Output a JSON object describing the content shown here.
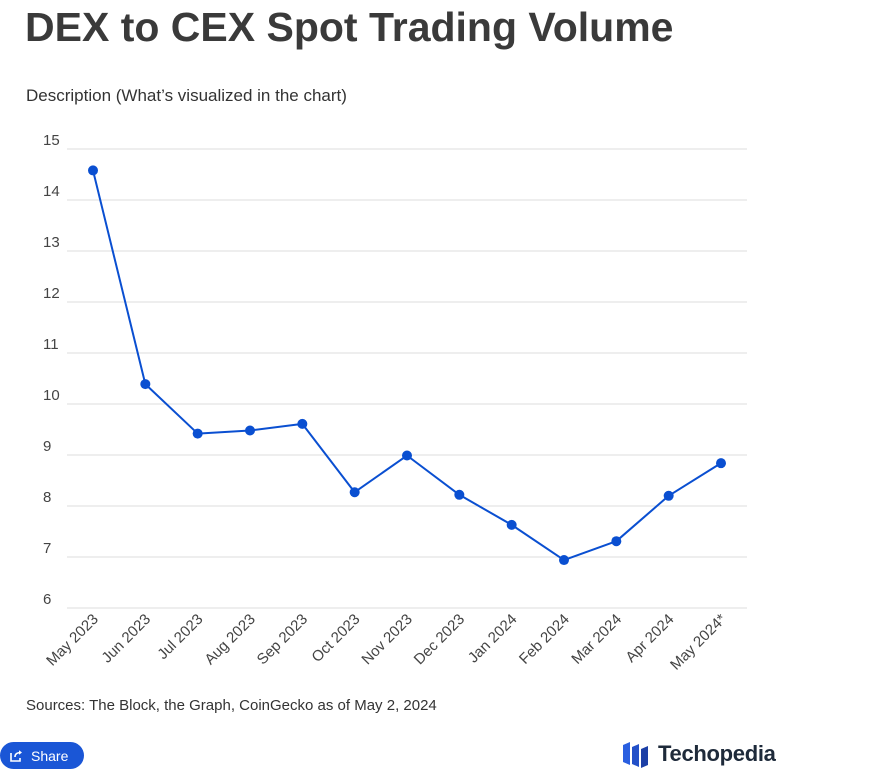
{
  "header": {
    "title": "DEX to CEX Spot Trading Volume",
    "subtitle": "Description (What’s visualized in the chart)"
  },
  "footer": {
    "source": "Sources: The Block, the Graph, CoinGecko as of May 2, 2024",
    "share_label": "Share",
    "brand_name": "Techopedia"
  },
  "colors": {
    "line": "#0a4fd1",
    "grid": "#dddddd",
    "share_bg": "#1a56d6",
    "brand_blue": "#2a5fe0"
  },
  "icons": {
    "share": "share-icon",
    "logo": "techopedia-logo-icon"
  },
  "chart_data": {
    "type": "line",
    "title": "DEX to CEX Spot Trading Volume",
    "xlabel": "",
    "ylabel": "",
    "categories": [
      "May 2023",
      "Jun 2023",
      "Jul 2023",
      "Aug 2023",
      "Sep 2023",
      "Oct 2023",
      "Nov 2023",
      "Dec 2023",
      "Jan 2024",
      "Feb 2024",
      "Mar 2024",
      "Apr 2024",
      "May 2024*"
    ],
    "series": [
      {
        "values": [
          14.58,
          10.39,
          9.42,
          9.48,
          9.61,
          8.27,
          8.99,
          8.22,
          7.63,
          6.94,
          7.31,
          8.2,
          8.84
        ]
      }
    ],
    "ylim": [
      6,
      15
    ],
    "yticks": [
      "6",
      "7",
      "8",
      "9",
      "10",
      "11",
      "12",
      "13",
      "14",
      "15"
    ],
    "grid": true,
    "legend": "none"
  }
}
